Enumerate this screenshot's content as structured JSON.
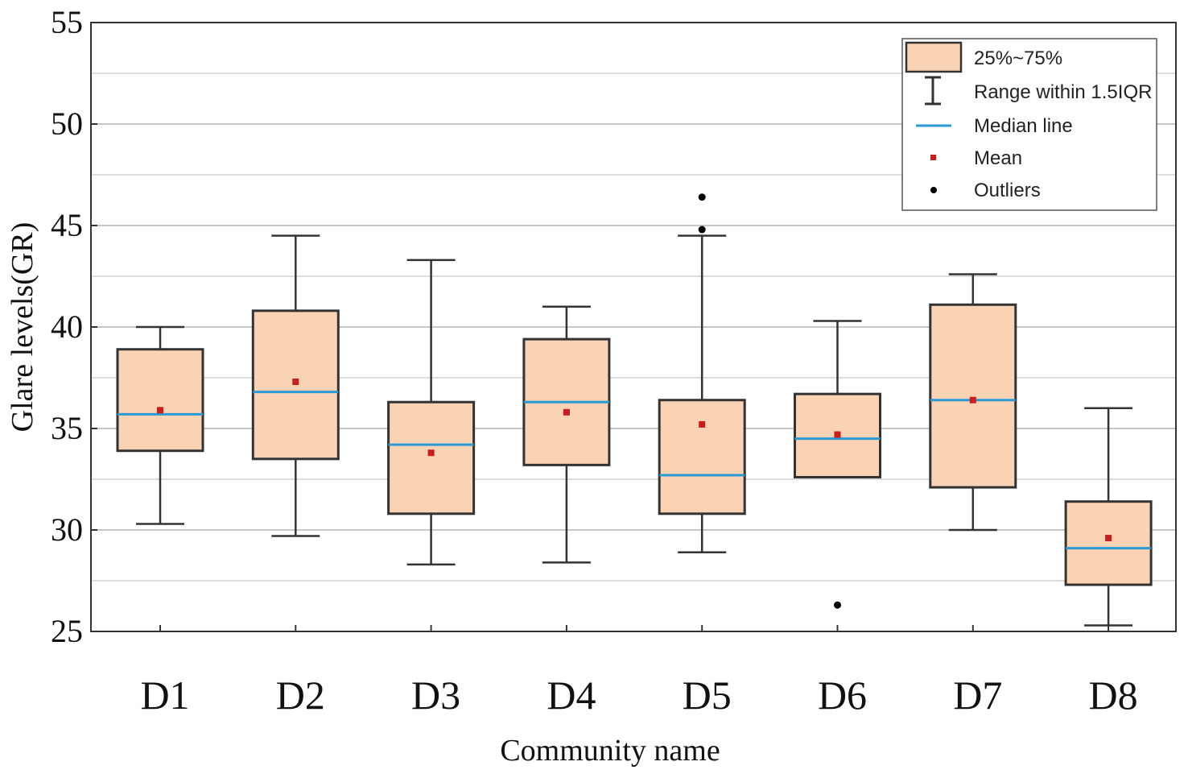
{
  "chart_data": {
    "type": "boxplot",
    "xlabel": "Community name",
    "ylabel": "Glare levels(GR)",
    "ylim": [
      25,
      55
    ],
    "yticks": [
      25,
      30,
      35,
      40,
      45,
      50,
      55
    ],
    "grid": true,
    "categories": [
      "D1",
      "D2",
      "D3",
      "D4",
      "D5",
      "D6",
      "D7",
      "D8"
    ],
    "boxes": [
      {
        "name": "D1",
        "whisker_low": 30.3,
        "q1": 33.9,
        "median": 35.7,
        "q3": 38.9,
        "whisker_high": 40.0,
        "mean": 35.9,
        "outliers": []
      },
      {
        "name": "D2",
        "whisker_low": 29.7,
        "q1": 33.5,
        "median": 36.8,
        "q3": 40.8,
        "whisker_high": 44.5,
        "mean": 37.3,
        "outliers": []
      },
      {
        "name": "D3",
        "whisker_low": 28.3,
        "q1": 30.8,
        "median": 34.2,
        "q3": 36.3,
        "whisker_high": 43.3,
        "mean": 33.8,
        "outliers": []
      },
      {
        "name": "D4",
        "whisker_low": 28.4,
        "q1": 33.2,
        "median": 36.3,
        "q3": 39.4,
        "whisker_high": 41.0,
        "mean": 35.8,
        "outliers": []
      },
      {
        "name": "D5",
        "whisker_low": 28.9,
        "q1": 30.8,
        "median": 32.7,
        "q3": 36.4,
        "whisker_high": 44.5,
        "mean": 35.2,
        "outliers": [
          46.4,
          44.8
        ]
      },
      {
        "name": "D6",
        "whisker_low": 32.6,
        "q1": 32.6,
        "median": 34.5,
        "q3": 36.7,
        "whisker_high": 40.3,
        "mean": 34.7,
        "outliers": [
          26.3
        ]
      },
      {
        "name": "D7",
        "whisker_low": 30.0,
        "q1": 32.1,
        "median": 36.4,
        "q3": 41.1,
        "whisker_high": 42.6,
        "mean": 36.4,
        "outliers": []
      },
      {
        "name": "D8",
        "whisker_low": 25.3,
        "q1": 27.3,
        "median": 29.1,
        "q3": 31.4,
        "whisker_high": 36.0,
        "mean": 29.6,
        "outliers": []
      }
    ],
    "legend": {
      "position": "top-right",
      "entries": [
        {
          "label": "25%~75%",
          "kind": "box"
        },
        {
          "label": "Range within 1.5IQR",
          "kind": "whisker"
        },
        {
          "label": "Median line",
          "kind": "median"
        },
        {
          "label": "Mean",
          "kind": "mean"
        },
        {
          "label": "Outliers",
          "kind": "outlier"
        }
      ]
    },
    "colors": {
      "box_fill": "#f9d3b4",
      "box_edge": "#333333",
      "median": "#2a9ad6",
      "mean": "#c81e1e",
      "outlier": "#000000",
      "whisker": "#333333",
      "grid": "#c8c8c8"
    }
  }
}
